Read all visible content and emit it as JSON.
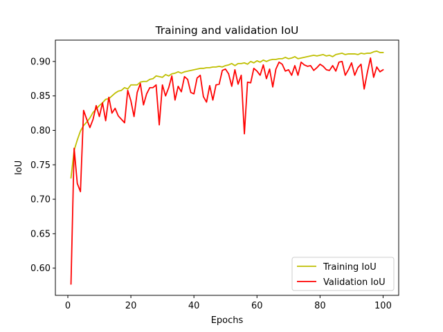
{
  "chart_data": {
    "type": "line",
    "title": "Training and validation IoU",
    "xlabel": "Epochs",
    "ylabel": "IoU",
    "xlim": [
      -3.95,
      104.95
    ],
    "ylim": [
      0.5605,
      0.931
    ],
    "xticks": [
      0,
      20,
      40,
      60,
      80,
      100
    ],
    "yticks": [
      0.6,
      0.65,
      0.7,
      0.75,
      0.8,
      0.85,
      0.9
    ],
    "xtick_labels": [
      "0",
      "20",
      "40",
      "60",
      "80",
      "100"
    ],
    "ytick_labels": [
      "0.60",
      "0.65",
      "0.70",
      "0.75",
      "0.80",
      "0.85",
      "0.90"
    ],
    "grid": false,
    "legend_position": "lower right",
    "x": [
      1,
      2,
      3,
      4,
      5,
      6,
      7,
      8,
      9,
      10,
      11,
      12,
      13,
      14,
      15,
      16,
      17,
      18,
      19,
      20,
      21,
      22,
      23,
      24,
      25,
      26,
      27,
      28,
      29,
      30,
      31,
      32,
      33,
      34,
      35,
      36,
      37,
      38,
      39,
      40,
      41,
      42,
      43,
      44,
      45,
      46,
      47,
      48,
      49,
      50,
      51,
      52,
      53,
      54,
      55,
      56,
      57,
      58,
      59,
      60,
      61,
      62,
      63,
      64,
      65,
      66,
      67,
      68,
      69,
      70,
      71,
      72,
      73,
      74,
      75,
      76,
      77,
      78,
      79,
      80,
      81,
      82,
      83,
      84,
      85,
      86,
      87,
      88,
      89,
      90,
      91,
      92,
      93,
      94,
      95,
      96,
      97,
      98,
      99,
      100
    ],
    "series": [
      {
        "name": "Training IoU",
        "color": "#bfbf00",
        "values": [
          0.731,
          0.771,
          0.786,
          0.799,
          0.807,
          0.812,
          0.818,
          0.826,
          0.831,
          0.836,
          0.84,
          0.845,
          0.846,
          0.85,
          0.854,
          0.857,
          0.858,
          0.862,
          0.86,
          0.866,
          0.866,
          0.866,
          0.87,
          0.871,
          0.871,
          0.874,
          0.875,
          0.879,
          0.878,
          0.877,
          0.881,
          0.879,
          0.882,
          0.883,
          0.885,
          0.883,
          0.885,
          0.886,
          0.887,
          0.888,
          0.889,
          0.89,
          0.89,
          0.891,
          0.891,
          0.892,
          0.892,
          0.893,
          0.892,
          0.894,
          0.895,
          0.897,
          0.894,
          0.897,
          0.897,
          0.898,
          0.896,
          0.9,
          0.898,
          0.901,
          0.899,
          0.902,
          0.9,
          0.902,
          0.903,
          0.903,
          0.904,
          0.904,
          0.906,
          0.904,
          0.905,
          0.907,
          0.904,
          0.905,
          0.906,
          0.907,
          0.908,
          0.909,
          0.908,
          0.909,
          0.91,
          0.908,
          0.909,
          0.907,
          0.91,
          0.911,
          0.912,
          0.91,
          0.911,
          0.911,
          0.911,
          0.91,
          0.912,
          0.911,
          0.912,
          0.912,
          0.914,
          0.915,
          0.913,
          0.913
        ]
      },
      {
        "name": "Validation IoU",
        "color": "#ff0000",
        "values": [
          0.577,
          0.774,
          0.723,
          0.711,
          0.829,
          0.816,
          0.804,
          0.816,
          0.836,
          0.82,
          0.84,
          0.814,
          0.848,
          0.825,
          0.832,
          0.821,
          0.816,
          0.811,
          0.858,
          0.843,
          0.82,
          0.855,
          0.868,
          0.837,
          0.853,
          0.862,
          0.862,
          0.866,
          0.808,
          0.866,
          0.85,
          0.862,
          0.879,
          0.844,
          0.864,
          0.856,
          0.878,
          0.874,
          0.855,
          0.853,
          0.876,
          0.88,
          0.849,
          0.841,
          0.865,
          0.844,
          0.866,
          0.867,
          0.887,
          0.889,
          0.882,
          0.864,
          0.888,
          0.867,
          0.88,
          0.795,
          0.87,
          0.869,
          0.89,
          0.886,
          0.88,
          0.895,
          0.875,
          0.889,
          0.863,
          0.889,
          0.899,
          0.896,
          0.886,
          0.888,
          0.88,
          0.894,
          0.88,
          0.899,
          0.895,
          0.893,
          0.894,
          0.887,
          0.891,
          0.896,
          0.893,
          0.888,
          0.887,
          0.894,
          0.886,
          0.899,
          0.9,
          0.88,
          0.888,
          0.898,
          0.88,
          0.891,
          0.896,
          0.86,
          0.884,
          0.905,
          0.877,
          0.892,
          0.885,
          0.888
        ]
      }
    ]
  }
}
